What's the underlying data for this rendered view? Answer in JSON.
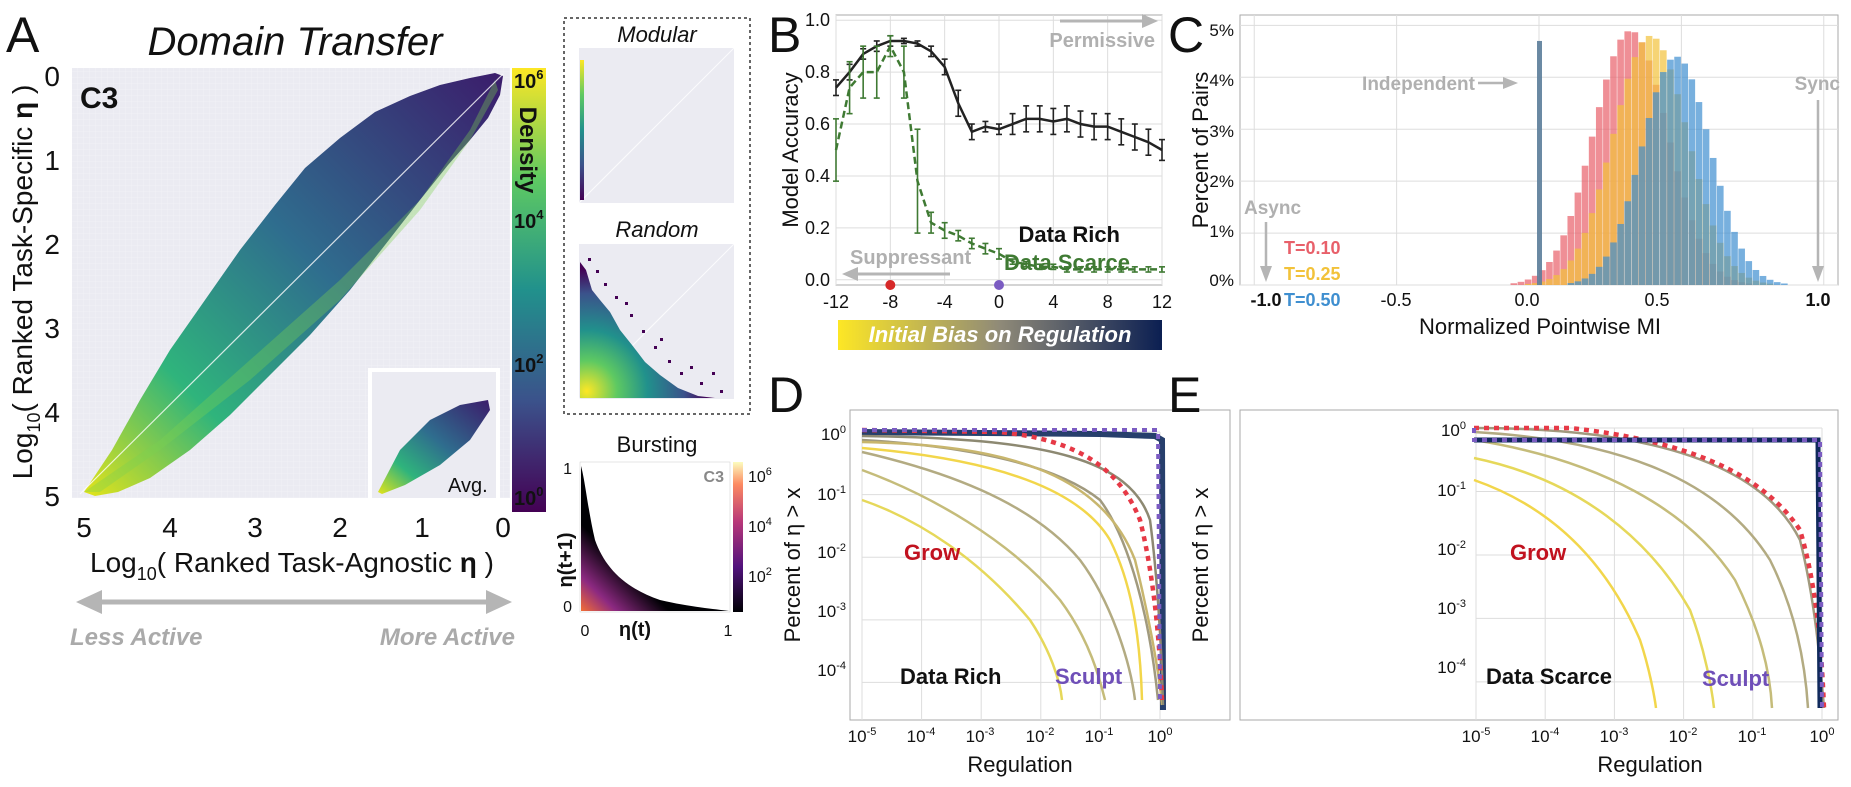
{
  "panelA": {
    "letter": "A",
    "title": "Domain Transfer",
    "tag": "C3",
    "xlabel_pre": "Log",
    "xlabel_sub": "10",
    "xlabel_post": "( Ranked Task-Agnostic ",
    "xlabel_eta": "η",
    "xlabel_end": " )",
    "ylabel_pre": "Log",
    "ylabel_sub": "10",
    "ylabel_post": "( Ranked Task-Specific ",
    "ylabel_eta": "η",
    "ylabel_end": " )",
    "xticks": [
      "5",
      "4",
      "3",
      "2",
      "1",
      "0"
    ],
    "yticks": [
      "0",
      "1",
      "2",
      "3",
      "4",
      "5"
    ],
    "inset_label": "Avg.",
    "colorbar_label": "Density",
    "colorbar_ticks": [
      {
        "base": "10",
        "exp": "6"
      },
      {
        "base": "10",
        "exp": "4"
      },
      {
        "base": "10",
        "exp": "2"
      },
      {
        "base": "10",
        "exp": "0"
      }
    ],
    "arrow_left": "Less Active",
    "arrow_right": "More Active"
  },
  "sidePanels": {
    "modular": "Modular",
    "random": "Random",
    "bursting": "Bursting",
    "bursting_tag": "C3",
    "bursting_xlabel": "η(t)",
    "bursting_ylabel": "η(t+1)",
    "bursting_x0": "0",
    "bursting_x1": "1",
    "bursting_y0": "0",
    "bursting_y1": "1",
    "bursting_cbar_ticks": [
      {
        "base": "10",
        "exp": "6"
      },
      {
        "base": "10",
        "exp": "4"
      },
      {
        "base": "10",
        "exp": "2"
      }
    ]
  },
  "panelB": {
    "letter": "B",
    "ylabel": "Model Accuracy",
    "permissive": "Permissive",
    "suppressant": "Suppressant",
    "legend_rich": "Data Rich",
    "legend_scarce": "Data Scarce",
    "colorbar_label": "Initial Bias on Regulation",
    "colors": {
      "rich": "#222222",
      "scarce": "#3f7a33"
    }
  },
  "panelC": {
    "letter": "C",
    "ylabel": "Percent of Pairs",
    "xlabel": "Normalized Pointwise MI",
    "xticks": [
      "-1.0",
      "-0.5",
      "0.0",
      "0.5",
      "1.0"
    ],
    "yticks": [
      "0%",
      "1%",
      "2%",
      "3%",
      "4%",
      "5%"
    ],
    "independent": "Independent",
    "sync": "Sync",
    "async": "Async",
    "legend": [
      {
        "label": "T=0.10",
        "color": "#e8606a"
      },
      {
        "label": "T=0.25",
        "color": "#f2c23a"
      },
      {
        "label": "T=0.50",
        "color": "#3f8fd0"
      }
    ]
  },
  "panelD": {
    "letter": "D",
    "ylabel": "Percent of η > x",
    "xlabel": "Regulation",
    "grow": "Grow",
    "sculpt": "Sculpt",
    "regime": "Data Rich"
  },
  "panelE": {
    "letter": "E",
    "ylabel": "Percent of η > x",
    "xlabel": "Regulation",
    "grow": "Grow",
    "sculpt": "Sculpt",
    "regime": "Data Scarce"
  },
  "logTicks": [
    {
      "base": "10",
      "exp": "-5"
    },
    {
      "base": "10",
      "exp": "-4"
    },
    {
      "base": "10",
      "exp": "-3"
    },
    {
      "base": "10",
      "exp": "-2"
    },
    {
      "base": "10",
      "exp": "-1"
    },
    {
      "base": "10",
      "exp": "0"
    }
  ],
  "chart_data": [
    {
      "id": "B",
      "type": "line",
      "x": [
        -12,
        -11,
        -10,
        -9,
        -8,
        -7,
        -6,
        -5,
        -4,
        -3,
        -2,
        -1,
        0,
        1,
        2,
        3,
        4,
        5,
        6,
        7,
        8,
        9,
        10,
        11,
        12
      ],
      "xticks": [
        -12,
        -8,
        -4,
        0,
        4,
        8,
        12
      ],
      "yticks": [
        0.0,
        0.2,
        0.4,
        0.6,
        0.8,
        1.0
      ],
      "xlim": [
        -12,
        12
      ],
      "ylim": [
        -0.02,
        1.02
      ],
      "series": [
        {
          "name": "Data Rich",
          "values": [
            0.74,
            0.8,
            0.87,
            0.9,
            0.92,
            0.92,
            0.91,
            0.88,
            0.82,
            0.68,
            0.57,
            0.59,
            0.58,
            0.6,
            0.62,
            0.62,
            0.61,
            0.62,
            0.6,
            0.59,
            0.59,
            0.57,
            0.55,
            0.53,
            0.5
          ],
          "err": [
            0.03,
            0.03,
            0.02,
            0.02,
            0.02,
            0.01,
            0.01,
            0.02,
            0.03,
            0.05,
            0.03,
            0.02,
            0.02,
            0.04,
            0.05,
            0.05,
            0.05,
            0.05,
            0.05,
            0.05,
            0.05,
            0.05,
            0.05,
            0.05,
            0.04
          ]
        },
        {
          "name": "Data Scarce",
          "values": [
            0.5,
            0.74,
            0.8,
            0.8,
            0.9,
            0.8,
            0.38,
            0.22,
            0.19,
            0.17,
            0.14,
            0.12,
            0.1,
            0.07,
            0.06,
            0.05,
            0.05,
            0.04,
            0.04,
            0.04,
            0.04,
            0.04,
            0.04,
            0.04,
            0.04
          ],
          "err": [
            0.12,
            0.1,
            0.1,
            0.1,
            0.04,
            0.1,
            0.2,
            0.04,
            0.03,
            0.02,
            0.02,
            0.02,
            0.02,
            0.01,
            0.01,
            0.01,
            0.01,
            0.01,
            0.01,
            0.01,
            0.01,
            0.01,
            0.01,
            0.01,
            0.01
          ]
        }
      ],
      "markers": [
        {
          "x": -8,
          "color": "#d62828"
        },
        {
          "x": 0,
          "color": "#7b5cc2"
        }
      ]
    },
    {
      "id": "C",
      "type": "bar",
      "xlim": [
        -1.05,
        1.05
      ],
      "ylim": [
        0,
        5.2
      ],
      "series": [
        {
          "name": "T=0.10",
          "center": 0.31,
          "width": 0.13,
          "peak": 4.9
        },
        {
          "name": "T=0.25",
          "center": 0.38,
          "width": 0.13,
          "peak": 4.8
        },
        {
          "name": "T=0.50",
          "center": 0.47,
          "width": 0.12,
          "peak": 4.4
        }
      ],
      "independent_bin": {
        "x": 0.0,
        "value": 4.7
      }
    },
    {
      "id": "A",
      "type": "heatmap",
      "xlim": [
        5,
        0
      ],
      "ylim": [
        5,
        0
      ],
      "colorbar_range": [
        0,
        6
      ]
    }
  ]
}
